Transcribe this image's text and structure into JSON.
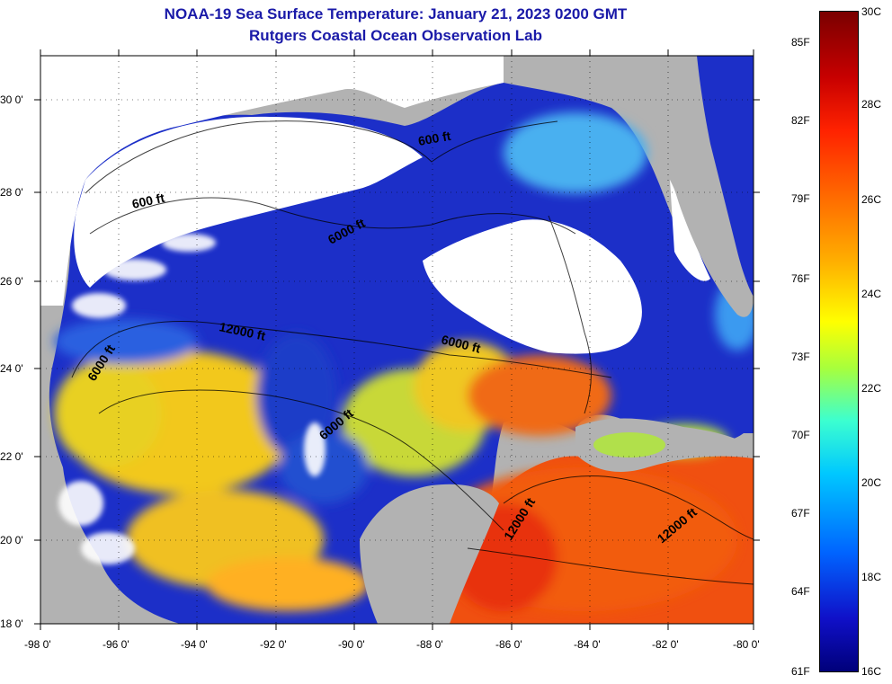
{
  "title_line1": "NOAA-19 Sea Surface Temperature:  January 21, 2023 0200 GMT",
  "title_line2": "Rutgers Coastal Ocean Observation Lab",
  "lat_labels": [
    "30 0'",
    "28 0'",
    "26 0'",
    "24 0'",
    "22 0'",
    "20 0'",
    "18 0'"
  ],
  "lon_labels": [
    "-98 0'",
    "-96 0'",
    "-94 0'",
    "-92 0'",
    "-90 0'",
    "-88 0'",
    "-86 0'",
    "-84 0'",
    "-82 0'",
    "-80 0'"
  ],
  "colorbar_f_labels": [
    "85F",
    "82F",
    "79F",
    "76F",
    "73F",
    "70F",
    "67F",
    "64F",
    "61F"
  ],
  "colorbar_c_labels": [
    "30C",
    "28C",
    "26C",
    "24C",
    "22C",
    "20C",
    "18C",
    "16C"
  ],
  "contour_labels": [
    "600 ft",
    "600 ft",
    "6000 ft",
    "12000 ft",
    "6000 ft",
    "6000 ft",
    "6000 ft",
    "12000 ft",
    "12000 ft"
  ],
  "colors": {
    "land": "#b2b2b2",
    "cloud": "#ffffff",
    "title": "#1a1aa8"
  }
}
